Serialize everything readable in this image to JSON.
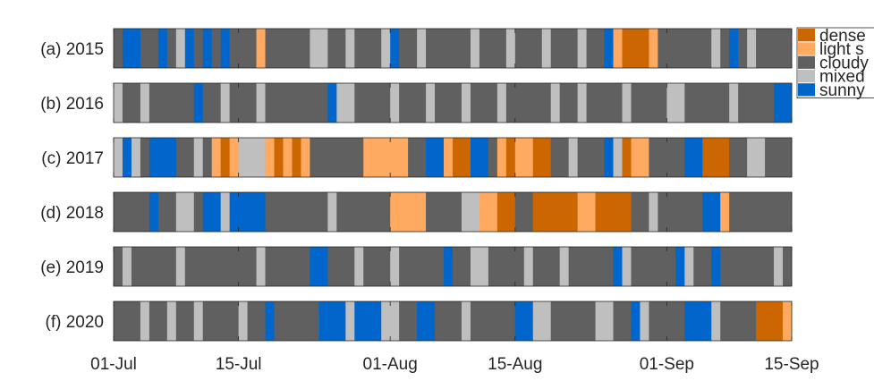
{
  "chart_data": {
    "type": "heatmap",
    "title": "",
    "xlabel": "",
    "ylabel": "",
    "x_ticks": [
      "01-Jul",
      "15-Jul",
      "01-Aug",
      "15-Aug",
      "01-Sep",
      "15-Sep"
    ],
    "x_range": [
      "2015-07-01",
      "2015-09-15"
    ],
    "categories": [
      "dense smoke",
      "light smoke",
      "cloudy",
      "mixed",
      "sunny"
    ],
    "legend_labels": [
      "dense",
      "light s",
      "cloudy",
      "mixed",
      "sunny"
    ],
    "legend_position": "right",
    "colors": {
      "dense smoke": "#cc6600",
      "light smoke": "#ffaa60",
      "cloudy": "#606060",
      "mixed": "#bfbfbf",
      "sunny": "#0066cc"
    },
    "rows": [
      {
        "label": "(a) 2015",
        "segments": [
          [
            "07-01",
            "cloudy"
          ],
          [
            "07-02",
            "sunny"
          ],
          [
            "07-04",
            "cloudy"
          ],
          [
            "07-06",
            "sunny"
          ],
          [
            "07-07",
            "cloudy"
          ],
          [
            "07-08",
            "mixed"
          ],
          [
            "07-09",
            "sunny"
          ],
          [
            "07-10",
            "cloudy"
          ],
          [
            "07-11",
            "sunny"
          ],
          [
            "07-12",
            "cloudy"
          ],
          [
            "07-13",
            "sunny"
          ],
          [
            "07-14",
            "cloudy"
          ],
          [
            "07-17",
            "light smoke"
          ],
          [
            "07-18",
            "cloudy"
          ],
          [
            "07-23",
            "mixed"
          ],
          [
            "07-25",
            "cloudy"
          ],
          [
            "07-27",
            "mixed"
          ],
          [
            "07-28",
            "cloudy"
          ],
          [
            "07-31",
            "mixed"
          ],
          [
            "08-01",
            "sunny"
          ],
          [
            "08-02",
            "cloudy"
          ],
          [
            "08-04",
            "mixed"
          ],
          [
            "08-05",
            "cloudy"
          ],
          [
            "08-10",
            "mixed"
          ],
          [
            "08-11",
            "cloudy"
          ],
          [
            "08-14",
            "mixed"
          ],
          [
            "08-15",
            "cloudy"
          ],
          [
            "08-18",
            "mixed"
          ],
          [
            "08-19",
            "cloudy"
          ],
          [
            "08-22",
            "mixed"
          ],
          [
            "08-23",
            "cloudy"
          ],
          [
            "08-25",
            "sunny"
          ],
          [
            "08-26",
            "light smoke"
          ],
          [
            "08-27",
            "dense smoke"
          ],
          [
            "08-30",
            "light smoke"
          ],
          [
            "08-31",
            "cloudy"
          ],
          [
            "09-06",
            "mixed"
          ],
          [
            "09-07",
            "cloudy"
          ],
          [
            "09-08",
            "sunny"
          ],
          [
            "09-09",
            "cloudy"
          ],
          [
            "09-10",
            "mixed"
          ],
          [
            "09-11",
            "cloudy"
          ]
        ]
      },
      {
        "label": "(b) 2016",
        "segments": [
          [
            "07-01",
            "mixed"
          ],
          [
            "07-02",
            "cloudy"
          ],
          [
            "07-04",
            "mixed"
          ],
          [
            "07-05",
            "cloudy"
          ],
          [
            "07-10",
            "sunny"
          ],
          [
            "07-11",
            "cloudy"
          ],
          [
            "07-13",
            "mixed"
          ],
          [
            "07-14",
            "cloudy"
          ],
          [
            "07-17",
            "mixed"
          ],
          [
            "07-18",
            "cloudy"
          ],
          [
            "07-25",
            "sunny"
          ],
          [
            "07-26",
            "mixed"
          ],
          [
            "07-28",
            "cloudy"
          ],
          [
            "08-01",
            "mixed"
          ],
          [
            "08-02",
            "cloudy"
          ],
          [
            "08-05",
            "mixed"
          ],
          [
            "08-06",
            "cloudy"
          ],
          [
            "08-09",
            "mixed"
          ],
          [
            "08-10",
            "cloudy"
          ],
          [
            "08-13",
            "mixed"
          ],
          [
            "08-14",
            "cloudy"
          ],
          [
            "08-19",
            "mixed"
          ],
          [
            "08-20",
            "cloudy"
          ],
          [
            "08-22",
            "mixed"
          ],
          [
            "08-23",
            "cloudy"
          ],
          [
            "08-27",
            "mixed"
          ],
          [
            "08-28",
            "cloudy"
          ],
          [
            "09-01",
            "mixed"
          ],
          [
            "09-03",
            "cloudy"
          ],
          [
            "09-08",
            "mixed"
          ],
          [
            "09-09",
            "cloudy"
          ],
          [
            "09-13",
            "sunny"
          ],
          [
            "09-15",
            "cloudy"
          ]
        ]
      },
      {
        "label": "(c) 2017",
        "segments": [
          [
            "07-01",
            "mixed"
          ],
          [
            "07-02",
            "sunny"
          ],
          [
            "07-03",
            "mixed"
          ],
          [
            "07-04",
            "cloudy"
          ],
          [
            "07-05",
            "sunny"
          ],
          [
            "07-08",
            "cloudy"
          ],
          [
            "07-10",
            "mixed"
          ],
          [
            "07-11",
            "cloudy"
          ],
          [
            "07-12",
            "light smoke"
          ],
          [
            "07-13",
            "dense smoke"
          ],
          [
            "07-14",
            "light smoke"
          ],
          [
            "07-15",
            "mixed"
          ],
          [
            "07-18",
            "light smoke"
          ],
          [
            "07-19",
            "dense smoke"
          ],
          [
            "07-20",
            "light smoke"
          ],
          [
            "07-21",
            "dense smoke"
          ],
          [
            "07-22",
            "light smoke"
          ],
          [
            "07-23",
            "cloudy"
          ],
          [
            "07-29",
            "light smoke"
          ],
          [
            "08-03",
            "cloudy"
          ],
          [
            "08-05",
            "sunny"
          ],
          [
            "08-07",
            "light smoke"
          ],
          [
            "08-08",
            "dense smoke"
          ],
          [
            "08-10",
            "sunny"
          ],
          [
            "08-12",
            "cloudy"
          ],
          [
            "08-13",
            "light smoke"
          ],
          [
            "08-14",
            "dense smoke"
          ],
          [
            "08-15",
            "light smoke"
          ],
          [
            "08-17",
            "dense smoke"
          ],
          [
            "08-19",
            "cloudy"
          ],
          [
            "08-21",
            "mixed"
          ],
          [
            "08-22",
            "cloudy"
          ],
          [
            "08-25",
            "sunny"
          ],
          [
            "08-26",
            "mixed"
          ],
          [
            "08-27",
            "dense smoke"
          ],
          [
            "08-28",
            "light smoke"
          ],
          [
            "08-30",
            "cloudy"
          ],
          [
            "09-03",
            "sunny"
          ],
          [
            "09-05",
            "dense smoke"
          ],
          [
            "09-08",
            "cloudy"
          ],
          [
            "09-10",
            "mixed"
          ],
          [
            "09-12",
            "cloudy"
          ],
          [
            "09-15",
            "sunny"
          ]
        ]
      },
      {
        "label": "(d) 2018",
        "segments": [
          [
            "07-01",
            "cloudy"
          ],
          [
            "07-05",
            "sunny"
          ],
          [
            "07-06",
            "cloudy"
          ],
          [
            "07-08",
            "mixed"
          ],
          [
            "07-10",
            "cloudy"
          ],
          [
            "07-11",
            "sunny"
          ],
          [
            "07-13",
            "mixed"
          ],
          [
            "07-14",
            "sunny"
          ],
          [
            "07-18",
            "cloudy"
          ],
          [
            "07-25",
            "mixed"
          ],
          [
            "07-26",
            "cloudy"
          ],
          [
            "08-01",
            "light smoke"
          ],
          [
            "08-05",
            "cloudy"
          ],
          [
            "08-09",
            "mixed"
          ],
          [
            "08-11",
            "light smoke"
          ],
          [
            "08-13",
            "dense smoke"
          ],
          [
            "08-15",
            "cloudy"
          ],
          [
            "08-17",
            "dense smoke"
          ],
          [
            "08-22",
            "light smoke"
          ],
          [
            "08-24",
            "dense smoke"
          ],
          [
            "08-28",
            "cloudy"
          ],
          [
            "08-30",
            "mixed"
          ],
          [
            "08-31",
            "cloudy"
          ],
          [
            "09-05",
            "sunny"
          ],
          [
            "09-07",
            "light smoke"
          ],
          [
            "09-08",
            "cloudy"
          ]
        ]
      },
      {
        "label": "(e) 2019",
        "segments": [
          [
            "07-01",
            "cloudy"
          ],
          [
            "07-02",
            "mixed"
          ],
          [
            "07-03",
            "cloudy"
          ],
          [
            "07-08",
            "mixed"
          ],
          [
            "07-09",
            "cloudy"
          ],
          [
            "07-17",
            "mixed"
          ],
          [
            "07-18",
            "cloudy"
          ],
          [
            "07-23",
            "sunny"
          ],
          [
            "07-25",
            "cloudy"
          ],
          [
            "07-28",
            "mixed"
          ],
          [
            "07-29",
            "cloudy"
          ],
          [
            "08-01",
            "mixed"
          ],
          [
            "08-02",
            "cloudy"
          ],
          [
            "08-07",
            "sunny"
          ],
          [
            "08-08",
            "cloudy"
          ],
          [
            "08-10",
            "mixed"
          ],
          [
            "08-12",
            "cloudy"
          ],
          [
            "08-16",
            "mixed"
          ],
          [
            "08-17",
            "cloudy"
          ],
          [
            "08-20",
            "mixed"
          ],
          [
            "08-21",
            "cloudy"
          ],
          [
            "08-26",
            "sunny"
          ],
          [
            "08-27",
            "mixed"
          ],
          [
            "08-28",
            "cloudy"
          ],
          [
            "09-02",
            "sunny"
          ],
          [
            "09-03",
            "mixed"
          ],
          [
            "09-04",
            "cloudy"
          ],
          [
            "09-06",
            "sunny"
          ],
          [
            "09-07",
            "cloudy"
          ],
          [
            "09-13",
            "mixed"
          ],
          [
            "09-14",
            "cloudy"
          ]
        ]
      },
      {
        "label": "(f) 2020",
        "segments": [
          [
            "07-01",
            "cloudy"
          ],
          [
            "07-04",
            "mixed"
          ],
          [
            "07-05",
            "cloudy"
          ],
          [
            "07-07",
            "mixed"
          ],
          [
            "07-08",
            "cloudy"
          ],
          [
            "07-10",
            "mixed"
          ],
          [
            "07-11",
            "cloudy"
          ],
          [
            "07-15",
            "mixed"
          ],
          [
            "07-16",
            "cloudy"
          ],
          [
            "07-18",
            "sunny"
          ],
          [
            "07-19",
            "cloudy"
          ],
          [
            "07-24",
            "sunny"
          ],
          [
            "07-27",
            "mixed"
          ],
          [
            "07-28",
            "sunny"
          ],
          [
            "07-31",
            "mixed"
          ],
          [
            "08-02",
            "cloudy"
          ],
          [
            "08-04",
            "sunny"
          ],
          [
            "08-06",
            "cloudy"
          ],
          [
            "08-09",
            "mixed"
          ],
          [
            "08-10",
            "cloudy"
          ],
          [
            "08-15",
            "sunny"
          ],
          [
            "08-17",
            "mixed"
          ],
          [
            "08-19",
            "cloudy"
          ],
          [
            "08-24",
            "mixed"
          ],
          [
            "08-26",
            "cloudy"
          ],
          [
            "08-28",
            "sunny"
          ],
          [
            "08-29",
            "mixed"
          ],
          [
            "08-30",
            "cloudy"
          ],
          [
            "09-03",
            "sunny"
          ],
          [
            "09-06",
            "mixed"
          ],
          [
            "09-07",
            "cloudy"
          ],
          [
            "09-11",
            "dense smoke"
          ],
          [
            "09-14",
            "light smoke"
          ]
        ]
      }
    ]
  }
}
